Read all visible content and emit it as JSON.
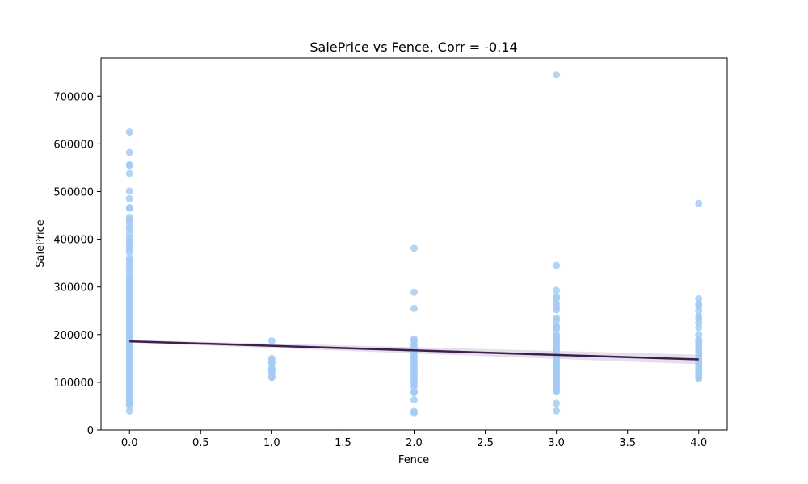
{
  "chart_data": {
    "type": "scatter",
    "title": "SalePrice vs Fence, Corr = -0.14",
    "xlabel": "Fence",
    "ylabel": "SalePrice",
    "xlim": [
      -0.2,
      4.2
    ],
    "ylim": [
      0,
      780000
    ],
    "x_ticks": [
      0.0,
      0.5,
      1.0,
      1.5,
      2.0,
      2.5,
      3.0,
      3.5,
      4.0
    ],
    "x_tick_labels": [
      "0.0",
      "0.5",
      "1.0",
      "1.5",
      "2.0",
      "2.5",
      "3.0",
      "3.5",
      "4.0"
    ],
    "y_ticks": [
      0,
      100000,
      200000,
      300000,
      400000,
      500000,
      600000,
      700000
    ],
    "y_tick_labels": [
      "0",
      "100000",
      "200000",
      "300000",
      "400000",
      "500000",
      "600000",
      "700000"
    ],
    "grid": false,
    "colors": {
      "points": "#a1c9f4",
      "regression_line": "#3b1f4f",
      "confidence_band": "#d6c8dc"
    },
    "series": [
      {
        "x": 0.0,
        "values": [
          625000,
          582000,
          556000,
          555000,
          538000,
          501000,
          485000,
          466000,
          465000,
          446000,
          440000,
          435000,
          426000,
          420000,
          410000,
          402000,
          395000,
          390000,
          385000,
          378000,
          372000,
          360000,
          355000,
          348000,
          340000,
          335000,
          328000,
          320000,
          315000,
          310000,
          305000,
          300000,
          295000,
          290000,
          285000,
          280000,
          275000,
          270000,
          265000,
          260000,
          255000,
          250000,
          245000,
          240000,
          235000,
          230000,
          225000,
          220000,
          215000,
          210000,
          205000,
          200000,
          195000,
          190000,
          185000,
          180000,
          175000,
          170000,
          165000,
          160000,
          155000,
          150000,
          145000,
          140000,
          135000,
          130000,
          125000,
          120000,
          115000,
          110000,
          105000,
          100000,
          95000,
          90000,
          85000,
          80000,
          75000,
          70000,
          65000,
          60000,
          55000,
          52000,
          40000
        ]
      },
      {
        "x": 1.0,
        "values": [
          187000,
          150000,
          145000,
          140000,
          130000,
          127000,
          123000,
          120000,
          112000,
          110000
        ]
      },
      {
        "x": 2.0,
        "values": [
          381000,
          289000,
          255000,
          191000,
          187000,
          180000,
          175000,
          170000,
          165000,
          160000,
          155000,
          150000,
          145000,
          140000,
          135000,
          130000,
          125000,
          120000,
          115000,
          110000,
          105000,
          100000,
          95000,
          90000,
          80000,
          78000,
          63000,
          39000,
          35000
        ]
      },
      {
        "x": 3.0,
        "values": [
          745000,
          345000,
          293000,
          280000,
          275000,
          265000,
          258000,
          252000,
          235000,
          230000,
          218000,
          215000,
          212000,
          200000,
          195000,
          190000,
          185000,
          180000,
          175000,
          170000,
          165000,
          160000,
          155000,
          150000,
          145000,
          140000,
          135000,
          130000,
          125000,
          120000,
          115000,
          110000,
          105000,
          100000,
          95000,
          90000,
          87000,
          83000,
          80000,
          56000,
          40000
        ]
      },
      {
        "x": 4.0,
        "values": [
          475000,
          275000,
          265000,
          260000,
          250000,
          238000,
          233000,
          225000,
          215000,
          200000,
          190000,
          185000,
          180000,
          175000,
          170000,
          165000,
          160000,
          155000,
          150000,
          145000,
          140000,
          135000,
          130000,
          125000,
          120000,
          115000,
          110000,
          108000
        ]
      }
    ],
    "regression": {
      "x": [
        0.0,
        4.0
      ],
      "y": [
        186000,
        148000
      ],
      "ci_lower": [
        183000,
        138000
      ],
      "ci_upper": [
        189000,
        158000
      ]
    }
  }
}
